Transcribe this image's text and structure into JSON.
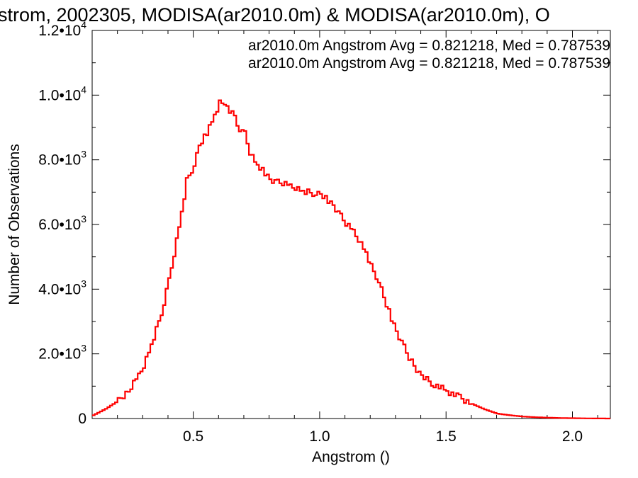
{
  "chart_data": {
    "type": "histogram",
    "title": "strom, 2002305, MODISA(ar2010.0m) & MODISA(ar2010.0m), O",
    "xlabel": "Angstrom ()",
    "ylabel": "Number of Observations",
    "xlim": [
      0.1,
      2.15
    ],
    "ylim": [
      0,
      12000
    ],
    "grid": false,
    "legend_position": "top-right",
    "x_ticks": [
      {
        "value": 0.5,
        "label": "0.5"
      },
      {
        "value": 1.0,
        "label": "1.0"
      },
      {
        "value": 1.5,
        "label": "1.5"
      },
      {
        "value": 2.0,
        "label": "2.0"
      }
    ],
    "y_ticks": [
      {
        "value": 0,
        "mant": "0",
        "exp": ""
      },
      {
        "value": 2000,
        "mant": "2.0•10",
        "exp": "3"
      },
      {
        "value": 4000,
        "mant": "4.0•10",
        "exp": "3"
      },
      {
        "value": 6000,
        "mant": "6.0•10",
        "exp": "3"
      },
      {
        "value": 8000,
        "mant": "8.0•10",
        "exp": "3"
      },
      {
        "value": 10000,
        "mant": "1.0•10",
        "exp": "4"
      },
      {
        "value": 12000,
        "mant": "1.2•10",
        "exp": "4"
      }
    ],
    "annotations": [
      {
        "text": "ar2010.0m Angstrom Avg = 0.821218, Med = 0.787539",
        "color": "#000000"
      },
      {
        "text": "ar2010.0m Angstrom Avg = 0.821218, Med = 0.787539",
        "color": "#ff0000"
      }
    ],
    "series": [
      {
        "color": "#ff0000",
        "x": [
          0.1,
          0.15,
          0.2,
          0.25,
          0.28,
          0.3,
          0.33,
          0.35,
          0.38,
          0.4,
          0.42,
          0.45,
          0.47,
          0.5,
          0.52,
          0.55,
          0.58,
          0.6,
          0.62,
          0.64,
          0.65,
          0.67,
          0.7,
          0.72,
          0.75,
          0.78,
          0.8,
          0.83,
          0.85,
          0.88,
          0.9,
          0.93,
          0.95,
          0.98,
          1.0,
          1.03,
          1.05,
          1.08,
          1.1,
          1.13,
          1.15,
          1.18,
          1.2,
          1.23,
          1.25,
          1.28,
          1.3,
          1.33,
          1.35,
          1.4,
          1.45,
          1.5,
          1.55,
          1.6,
          1.65,
          1.7,
          1.75,
          1.8,
          1.85,
          1.9,
          1.95,
          2.0,
          2.05,
          2.1,
          2.15
        ],
        "y": [
          100,
          300,
          550,
          950,
          1350,
          1650,
          2300,
          2750,
          3550,
          4300,
          5100,
          6400,
          7350,
          7850,
          8400,
          8850,
          9400,
          9750,
          9750,
          9400,
          9600,
          9050,
          8800,
          8200,
          7800,
          7600,
          7400,
          7300,
          7250,
          7200,
          7150,
          7050,
          7000,
          6950,
          6900,
          6750,
          6600,
          6250,
          6000,
          5800,
          5550,
          5150,
          4700,
          4250,
          3700,
          3100,
          2700,
          2200,
          1850,
          1300,
          1050,
          850,
          650,
          450,
          280,
          150,
          100,
          60,
          40,
          25,
          15,
          10,
          5,
          2,
          0
        ]
      }
    ]
  }
}
